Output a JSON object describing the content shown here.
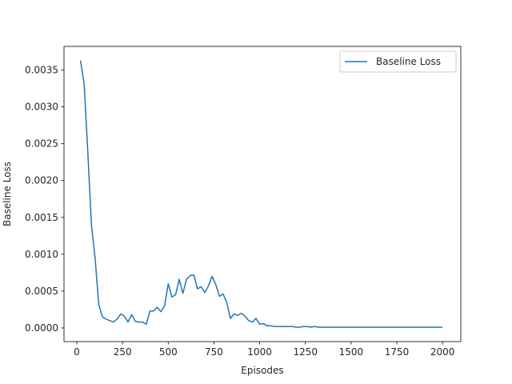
{
  "chart_data": {
    "type": "line",
    "title": "",
    "xlabel": "Episodes",
    "ylabel": "Baseline Loss",
    "xlim": [
      -70,
      2100
    ],
    "ylim": [
      -0.000185,
      0.00382
    ],
    "xticks": [
      0,
      250,
      500,
      750,
      1000,
      1250,
      1500,
      1750,
      2000
    ],
    "yticks": [
      0.0,
      0.0005,
      0.001,
      0.0015,
      0.002,
      0.0025,
      0.003,
      0.0035
    ],
    "xtick_labels": [
      "0",
      "250",
      "500",
      "750",
      "1000",
      "1250",
      "1500",
      "1750",
      "2000"
    ],
    "ytick_labels": [
      "0.0000",
      "0.0005",
      "0.0010",
      "0.0015",
      "0.0020",
      "0.0025",
      "0.0030",
      "0.0035"
    ],
    "grid": false,
    "legend": {
      "placement": "upper-right"
    },
    "series": [
      {
        "name": "Baseline Loss",
        "color": "#1f77b4",
        "x": [
          20,
          40,
          60,
          80,
          100,
          120,
          140,
          160,
          180,
          200,
          220,
          240,
          260,
          280,
          300,
          320,
          340,
          360,
          380,
          400,
          420,
          440,
          460,
          480,
          500,
          520,
          540,
          560,
          580,
          600,
          620,
          640,
          660,
          680,
          700,
          720,
          740,
          760,
          780,
          800,
          820,
          840,
          860,
          880,
          900,
          920,
          940,
          960,
          980,
          1000,
          1020,
          1040,
          1060,
          1080,
          1100,
          1120,
          1140,
          1160,
          1180,
          1200,
          1220,
          1240,
          1260,
          1280,
          1300,
          1320,
          1340,
          1360,
          1380,
          1400,
          1420,
          1440,
          1460,
          1480,
          1500,
          1520,
          1540,
          1560,
          1580,
          1600,
          1620,
          1640,
          1660,
          1680,
          1700,
          1720,
          1740,
          1760,
          1780,
          1800,
          1820,
          1840,
          1860,
          1880,
          1900,
          1920,
          1940,
          1960,
          1980,
          2000
        ],
        "values": [
          0.00363,
          0.00332,
          0.0024,
          0.0014,
          0.00095,
          0.00032,
          0.00015,
          0.00012,
          0.0001,
          8e-05,
          0.00012,
          0.00019,
          0.00016,
          8e-05,
          0.00018,
          9e-05,
          8e-05,
          8e-05,
          5e-05,
          0.00023,
          0.00023,
          0.00028,
          0.00022,
          0.0003,
          0.0006,
          0.00042,
          0.00045,
          0.00066,
          0.00047,
          0.00066,
          0.00071,
          0.00072,
          0.00053,
          0.00056,
          0.00048,
          0.00057,
          0.0007,
          0.00059,
          0.00043,
          0.00046,
          0.00035,
          0.00013,
          0.00019,
          0.00017,
          0.0002,
          0.00016,
          0.0001,
          8e-05,
          0.00013,
          5e-05,
          6e-05,
          3e-05,
          3e-05,
          2e-05,
          2e-05,
          2e-05,
          2e-05,
          2e-05,
          2e-05,
          1e-05,
          1e-05,
          2e-05,
          2e-05,
          1e-05,
          2e-05,
          1e-05,
          1e-05,
          1e-05,
          1e-05,
          1e-05,
          1e-05,
          1e-05,
          1e-05,
          1e-05,
          1e-05,
          1e-05,
          1e-05,
          1e-05,
          1e-05,
          1e-05,
          1e-05,
          1e-05,
          1e-05,
          1e-05,
          1e-05,
          1e-05,
          1e-05,
          1e-05,
          1e-05,
          1e-05,
          1e-05,
          1e-05,
          1e-05,
          1e-05,
          1e-05,
          1e-05,
          1e-05,
          1e-05,
          1e-05,
          1e-05
        ]
      }
    ]
  }
}
